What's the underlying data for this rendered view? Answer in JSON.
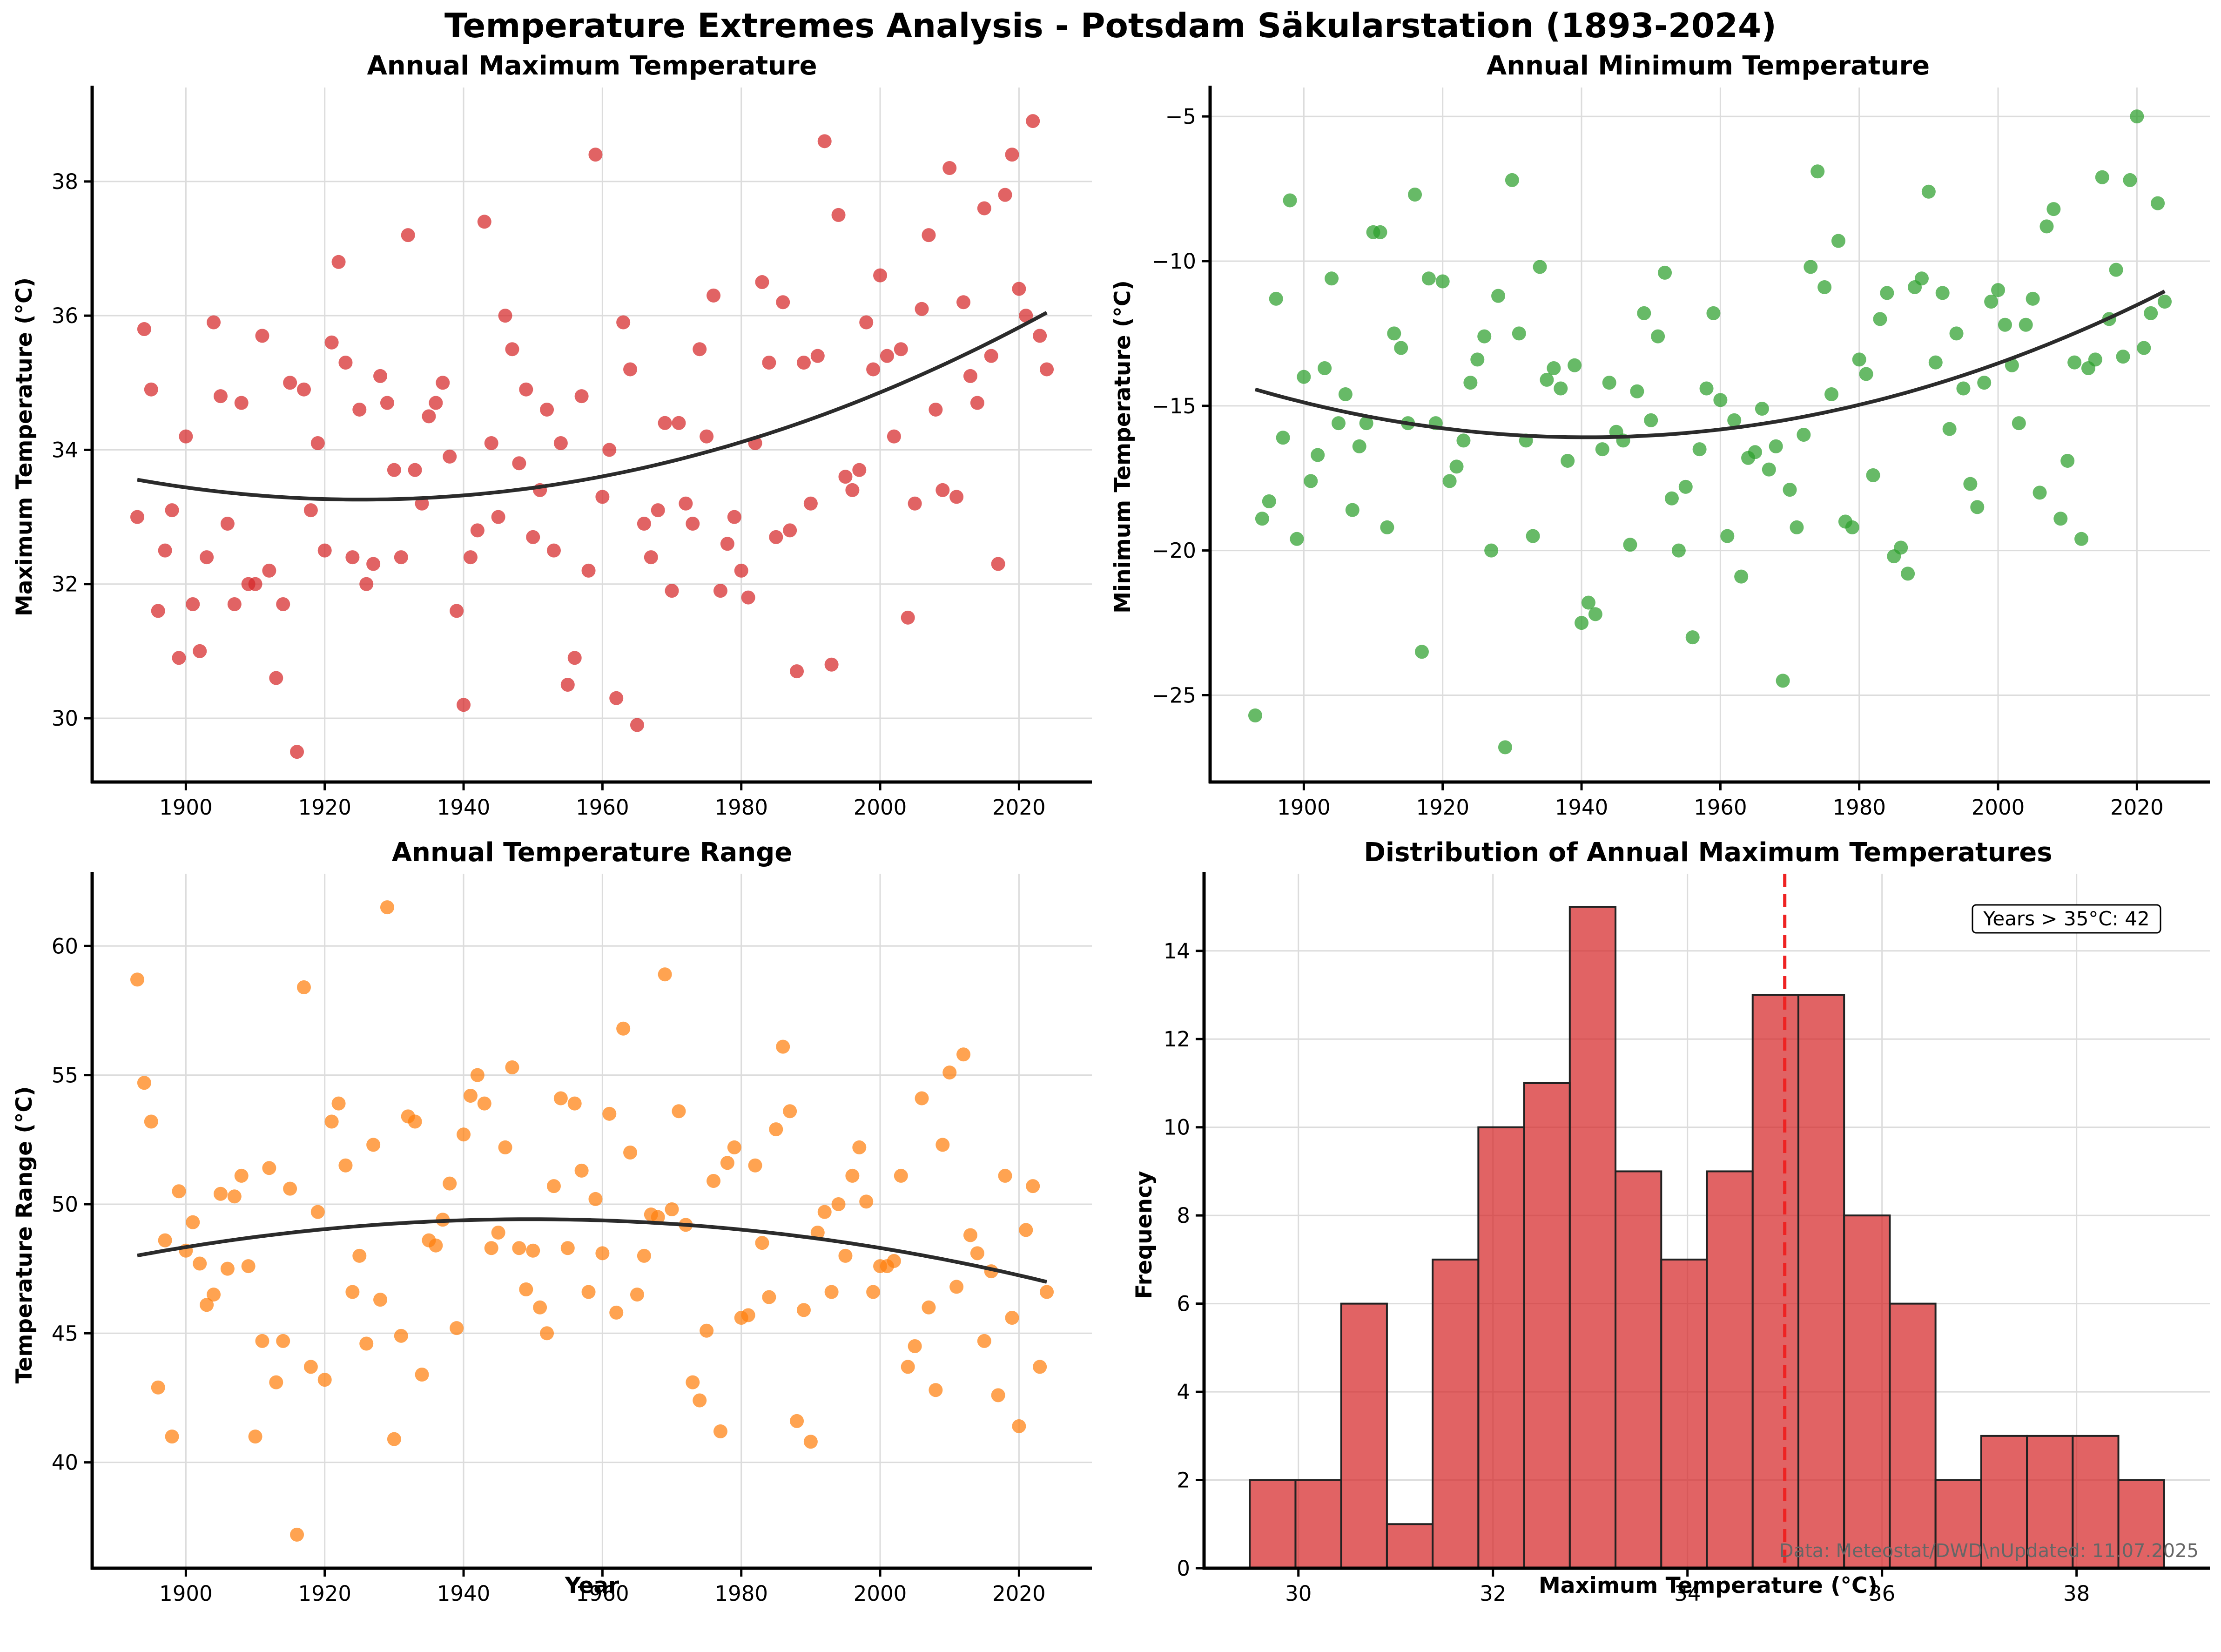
{
  "title": "Temperature Extremes Analysis - Potsdam Säkularstation (1893-2024)",
  "colors": {
    "max": "#d62728",
    "min": "#2ca02c",
    "range": "#ff7f0e",
    "trend": "#2b2b2b",
    "ref_line": "#ee2222"
  },
  "source_note": "Data: Meteostat/DWD\\nUpdated: 11.07.2025",
  "chart_data": [
    {
      "type": "scatter",
      "title": "Annual Maximum Temperature",
      "xlabel": "",
      "ylabel": "Maximum Temperature (°C)",
      "xlim": [
        1886.5,
        2030.5
      ],
      "ylim": [
        29.05,
        39.4
      ],
      "xticks": [
        1900,
        1920,
        1940,
        1960,
        1980,
        2000,
        2020
      ],
      "yticks": [
        30,
        32,
        34,
        36,
        38
      ],
      "grid": true,
      "color": "#d62728",
      "trend": {
        "type": "quadratic",
        "from": 1893,
        "to": 2024,
        "points": [
          [
            1893,
            33.55
          ],
          [
            1925,
            33.27
          ],
          [
            1960,
            33.6
          ],
          [
            2000,
            34.85
          ],
          [
            2024,
            36.05
          ]
        ]
      },
      "x": [
        1893,
        1894,
        1895,
        1896,
        1897,
        1898,
        1899,
        1900,
        1901,
        1902,
        1903,
        1904,
        1905,
        1906,
        1907,
        1908,
        1909,
        1910,
        1911,
        1912,
        1913,
        1914,
        1915,
        1916,
        1917,
        1918,
        1919,
        1920,
        1921,
        1922,
        1923,
        1924,
        1925,
        1926,
        1927,
        1928,
        1929,
        1930,
        1931,
        1932,
        1933,
        1934,
        1935,
        1936,
        1937,
        1938,
        1939,
        1940,
        1941,
        1942,
        1943,
        1944,
        1945,
        1946,
        1947,
        1948,
        1949,
        1950,
        1951,
        1952,
        1953,
        1954,
        1955,
        1956,
        1957,
        1958,
        1959,
        1960,
        1961,
        1962,
        1963,
        1964,
        1965,
        1966,
        1967,
        1968,
        1969,
        1970,
        1971,
        1972,
        1973,
        1974,
        1975,
        1976,
        1977,
        1978,
        1979,
        1980,
        1981,
        1982,
        1983,
        1984,
        1985,
        1986,
        1987,
        1988,
        1989,
        1990,
        1991,
        1992,
        1993,
        1994,
        1995,
        1996,
        1997,
        1998,
        1999,
        2000,
        2001,
        2002,
        2003,
        2004,
        2005,
        2006,
        2007,
        2008,
        2009,
        2010,
        2011,
        2012,
        2013,
        2014,
        2015,
        2016,
        2017,
        2018,
        2019,
        2020,
        2021,
        2022,
        2023,
        2024
      ],
      "y": [
        33.0,
        35.8,
        34.9,
        31.6,
        32.5,
        33.1,
        30.9,
        34.2,
        31.7,
        31.0,
        32.4,
        35.9,
        34.8,
        32.9,
        31.7,
        34.7,
        32.0,
        32.0,
        35.7,
        32.2,
        30.6,
        31.7,
        35.0,
        29.5,
        34.9,
        33.1,
        34.1,
        32.5,
        35.6,
        36.8,
        35.3,
        32.4,
        34.6,
        32.0,
        32.3,
        35.1,
        34.7,
        33.7,
        32.4,
        37.2,
        33.7,
        33.2,
        34.5,
        34.7,
        35.0,
        33.9,
        31.6,
        30.2,
        32.4,
        32.8,
        37.4,
        34.1,
        33.0,
        36.0,
        35.5,
        33.8,
        34.9,
        32.7,
        33.4,
        34.6,
        32.5,
        34.1,
        30.5,
        30.9,
        34.8,
        32.2,
        38.4,
        33.3,
        34.0,
        30.3,
        35.9,
        35.2,
        29.9,
        32.9,
        32.4,
        33.1,
        34.4,
        31.9,
        34.4,
        33.2,
        32.9,
        35.5,
        34.2,
        36.3,
        31.9,
        32.6,
        33.0,
        32.2,
        31.8,
        34.1,
        36.5,
        35.3,
        32.7,
        36.2,
        32.8,
        30.7,
        35.3,
        33.2,
        35.4,
        38.6,
        30.8,
        37.5,
        33.6,
        33.4,
        33.7,
        35.9,
        35.2,
        36.6,
        35.4,
        34.2,
        35.5,
        31.5,
        33.2,
        36.1,
        37.2,
        34.6,
        33.4,
        38.2,
        33.3,
        36.2,
        35.1,
        34.7,
        37.6,
        35.4,
        32.3,
        37.8,
        38.4,
        36.4,
        36.0,
        38.9,
        35.7,
        35.2
      ]
    },
    {
      "type": "scatter",
      "title": "Annual Minimum Temperature",
      "xlabel": "",
      "ylabel": "Minimum Temperature (°C)",
      "xlim": [
        1886.5,
        2030.5
      ],
      "ylim": [
        -28.0,
        -4.0
      ],
      "xticks": [
        1900,
        1920,
        1940,
        1960,
        1980,
        2000,
        2020
      ],
      "yticks": [
        -25,
        -20,
        -15,
        -10,
        -5
      ],
      "grid": true,
      "color": "#2ca02c",
      "trend": {
        "type": "quadratic",
        "from": 1893,
        "to": 2024,
        "points": [
          [
            1893,
            -14.5
          ],
          [
            1920,
            -15.65
          ],
          [
            1940,
            -16.1
          ],
          [
            1960,
            -15.8
          ],
          [
            1980,
            -15.05
          ],
          [
            2000,
            -13.55
          ],
          [
            2024,
            -11.0
          ]
        ]
      },
      "x": [
        1893,
        1894,
        1895,
        1896,
        1897,
        1898,
        1899,
        1900,
        1901,
        1902,
        1903,
        1904,
        1905,
        1906,
        1907,
        1908,
        1909,
        1910,
        1911,
        1912,
        1913,
        1914,
        1915,
        1916,
        1917,
        1918,
        1919,
        1920,
        1921,
        1922,
        1923,
        1924,
        1925,
        1926,
        1927,
        1928,
        1929,
        1930,
        1931,
        1932,
        1933,
        1934,
        1935,
        1936,
        1937,
        1938,
        1939,
        1940,
        1941,
        1942,
        1943,
        1944,
        1945,
        1946,
        1947,
        1948,
        1949,
        1950,
        1951,
        1952,
        1953,
        1954,
        1955,
        1956,
        1957,
        1958,
        1959,
        1960,
        1961,
        1962,
        1963,
        1964,
        1965,
        1966,
        1967,
        1968,
        1969,
        1970,
        1971,
        1972,
        1973,
        1974,
        1975,
        1976,
        1977,
        1978,
        1979,
        1980,
        1981,
        1982,
        1983,
        1984,
        1985,
        1986,
        1987,
        1988,
        1989,
        1990,
        1991,
        1992,
        1993,
        1994,
        1995,
        1996,
        1997,
        1998,
        1999,
        2000,
        2001,
        2002,
        2003,
        2004,
        2005,
        2006,
        2007,
        2008,
        2009,
        2010,
        2011,
        2012,
        2013,
        2014,
        2015,
        2016,
        2017,
        2018,
        2019,
        2020,
        2021,
        2022,
        2023,
        2024
      ],
      "y": [
        -25.7,
        -18.9,
        -18.3,
        -11.3,
        -16.1,
        -7.9,
        -19.6,
        -14.0,
        -17.6,
        -16.7,
        -13.7,
        -10.6,
        -15.6,
        -14.6,
        -18.6,
        -16.4,
        -15.6,
        -9.0,
        -9.0,
        -19.2,
        -12.5,
        -13.0,
        -15.6,
        -7.7,
        -23.5,
        -10.6,
        -15.6,
        -10.7,
        -17.6,
        -17.1,
        -16.2,
        -14.2,
        -13.4,
        -12.6,
        -20.0,
        -11.2,
        -26.8,
        -7.2,
        -12.5,
        -16.2,
        -19.5,
        -10.2,
        -14.1,
        -13.7,
        -14.4,
        -16.9,
        -13.6,
        -22.5,
        -21.8,
        -22.2,
        -16.5,
        -14.2,
        -15.9,
        -16.2,
        -19.8,
        -14.5,
        -11.8,
        -15.5,
        -12.6,
        -10.4,
        -18.2,
        -20.0,
        -17.8,
        -23.0,
        -16.5,
        -14.4,
        -11.8,
        -14.8,
        -19.5,
        -15.5,
        -20.9,
        -16.8,
        -16.6,
        -15.1,
        -17.2,
        -16.4,
        -24.5,
        -17.9,
        -19.2,
        -16.0,
        -10.2,
        -6.9,
        -10.9,
        -14.6,
        -9.3,
        -19.0,
        -19.2,
        -13.4,
        -13.9,
        -17.4,
        -12.0,
        -11.1,
        -20.2,
        -19.9,
        -20.8,
        -10.9,
        -10.6,
        -7.6,
        -13.5,
        -11.1,
        -15.8,
        -12.5,
        -14.4,
        -17.7,
        -18.5,
        -14.2,
        -11.4,
        -11.0,
        -12.2,
        -13.6,
        -15.6,
        -12.2,
        -11.3,
        -18.0,
        -8.8,
        -8.2,
        -18.9,
        -16.9,
        -13.5,
        -19.6,
        -13.7,
        -13.4,
        -7.1,
        -12.0,
        -10.3,
        -13.3,
        -7.2,
        -5.0,
        -13.0,
        -11.8,
        -8.0,
        -11.4
      ]
    },
    {
      "type": "scatter",
      "title": "Annual Temperature Range",
      "xlabel": "Year",
      "ylabel": "Temperature Range (°C)",
      "xlim": [
        1886.5,
        2030.5
      ],
      "ylim": [
        35.9,
        62.8
      ],
      "xticks": [
        1900,
        1920,
        1940,
        1960,
        1980,
        2000,
        2020
      ],
      "yticks": [
        40,
        45,
        50,
        55,
        60
      ],
      "grid": true,
      "color": "#ff7f0e",
      "trend": {
        "type": "quadratic",
        "from": 1893,
        "to": 2024,
        "points": [
          [
            1893,
            48.0
          ],
          [
            1920,
            49.0
          ],
          [
            1940,
            49.45
          ],
          [
            1960,
            49.4
          ],
          [
            1980,
            49.0
          ],
          [
            2000,
            48.2
          ],
          [
            2024,
            47.05
          ]
        ]
      },
      "x": [
        1893,
        1894,
        1895,
        1896,
        1897,
        1898,
        1899,
        1900,
        1901,
        1902,
        1903,
        1904,
        1905,
        1906,
        1907,
        1908,
        1909,
        1910,
        1911,
        1912,
        1913,
        1914,
        1915,
        1916,
        1917,
        1918,
        1919,
        1920,
        1921,
        1922,
        1923,
        1924,
        1925,
        1926,
        1927,
        1928,
        1929,
        1930,
        1931,
        1932,
        1933,
        1934,
        1935,
        1936,
        1937,
        1938,
        1939,
        1940,
        1941,
        1942,
        1943,
        1944,
        1945,
        1946,
        1947,
        1948,
        1949,
        1950,
        1951,
        1952,
        1953,
        1954,
        1955,
        1956,
        1957,
        1958,
        1959,
        1960,
        1961,
        1962,
        1963,
        1964,
        1965,
        1966,
        1967,
        1968,
        1969,
        1970,
        1971,
        1972,
        1973,
        1974,
        1975,
        1976,
        1977,
        1978,
        1979,
        1980,
        1981,
        1982,
        1983,
        1984,
        1985,
        1986,
        1987,
        1988,
        1989,
        1990,
        1991,
        1992,
        1993,
        1994,
        1995,
        1996,
        1997,
        1998,
        1999,
        2000,
        2001,
        2002,
        2003,
        2004,
        2005,
        2006,
        2007,
        2008,
        2009,
        2010,
        2011,
        2012,
        2013,
        2014,
        2015,
        2016,
        2017,
        2018,
        2019,
        2020,
        2021,
        2022,
        2023,
        2024
      ],
      "y": [
        58.7,
        54.7,
        53.2,
        42.9,
        48.6,
        41.0,
        50.5,
        48.2,
        49.3,
        47.7,
        46.1,
        46.5,
        50.4,
        47.5,
        50.3,
        51.1,
        47.6,
        41.0,
        44.7,
        51.4,
        43.1,
        44.7,
        50.6,
        37.2,
        58.4,
        43.7,
        49.7,
        43.2,
        53.2,
        53.9,
        51.5,
        46.6,
        48.0,
        44.6,
        52.3,
        46.3,
        61.5,
        40.9,
        44.9,
        53.4,
        53.2,
        43.4,
        48.6,
        48.4,
        49.4,
        50.8,
        45.2,
        52.7,
        54.2,
        55.0,
        53.9,
        48.3,
        48.9,
        52.2,
        55.3,
        48.3,
        46.7,
        48.2,
        46.0,
        45.0,
        50.7,
        54.1,
        48.3,
        53.9,
        51.3,
        46.6,
        50.2,
        48.1,
        53.5,
        45.8,
        56.8,
        52.0,
        46.5,
        48.0,
        49.6,
        49.5,
        58.9,
        49.8,
        53.6,
        49.2,
        43.1,
        42.4,
        45.1,
        50.9,
        41.2,
        51.6,
        52.2,
        45.6,
        45.7,
        51.5,
        48.5,
        46.4,
        52.9,
        56.1,
        53.6,
        41.6,
        45.9,
        40.8,
        48.9,
        49.7,
        46.6,
        50.0,
        48.0,
        51.1,
        52.2,
        50.1,
        46.6,
        47.6,
        47.6,
        47.8,
        51.1,
        43.7,
        44.5,
        54.1,
        46.0,
        42.8,
        52.3,
        55.1,
        46.8,
        55.8,
        48.8,
        48.1,
        44.7,
        47.4,
        42.6,
        51.1,
        45.6,
        41.4,
        49.0,
        50.7,
        43.7,
        46.6
      ]
    },
    {
      "type": "bar",
      "title": "Distribution of Annual Maximum Temperatures",
      "xlabel": "Maximum Temperature (°C)",
      "ylabel": "Frequency",
      "xlim": [
        29.03,
        39.37
      ],
      "ylim": [
        0,
        15.75
      ],
      "xticks": [
        30,
        32,
        34,
        36,
        38
      ],
      "yticks": [
        0,
        2,
        4,
        6,
        8,
        10,
        12,
        14
      ],
      "grid": true,
      "color": "#d62728",
      "bin_edges": [
        29.5,
        29.97,
        30.44,
        30.91,
        31.38,
        31.85,
        32.32,
        32.79,
        33.26,
        33.73,
        34.2,
        34.67,
        35.14,
        35.61,
        36.08,
        36.55,
        37.02,
        37.49,
        37.96,
        38.43,
        38.9
      ],
      "values": [
        2,
        2,
        6,
        1,
        7,
        10,
        11,
        15,
        9,
        7,
        9,
        13,
        13,
        8,
        6,
        2,
        3,
        3,
        3,
        2
      ],
      "reference_line": {
        "x": 35,
        "style": "dashed",
        "color": "#ee2222"
      },
      "annotation": "Years > 35°C: 42"
    }
  ]
}
